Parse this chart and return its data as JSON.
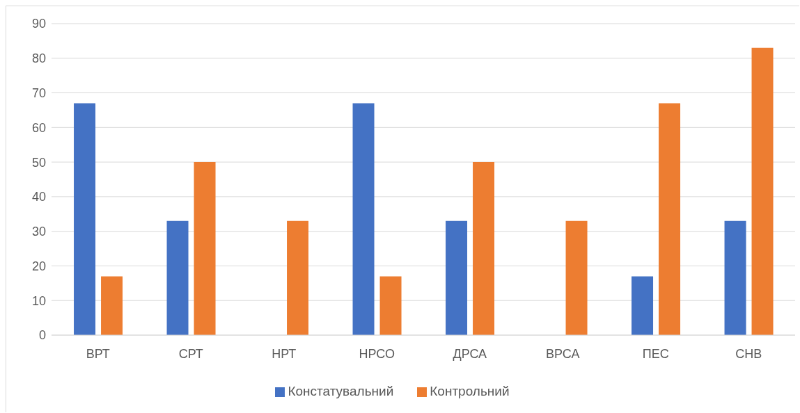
{
  "chart_data": {
    "type": "bar",
    "categories": [
      "ВРТ",
      "СРТ",
      "НРТ",
      "НРСО",
      "ДРСА",
      "ВРСА",
      "ПЕС",
      "СНВ"
    ],
    "series": [
      {
        "name": "Констатувальний",
        "color": "#4472c4",
        "values": [
          67,
          33,
          0,
          67,
          33,
          0,
          17,
          33
        ]
      },
      {
        "name": "Контрольний",
        "color": "#ed7d31",
        "values": [
          17,
          50,
          33,
          17,
          50,
          33,
          67,
          83
        ]
      }
    ],
    "ylim": [
      0,
      90
    ],
    "yticks": [
      0,
      10,
      20,
      30,
      40,
      50,
      60,
      70,
      80,
      90
    ],
    "grid": "y",
    "legend": "bottom"
  }
}
